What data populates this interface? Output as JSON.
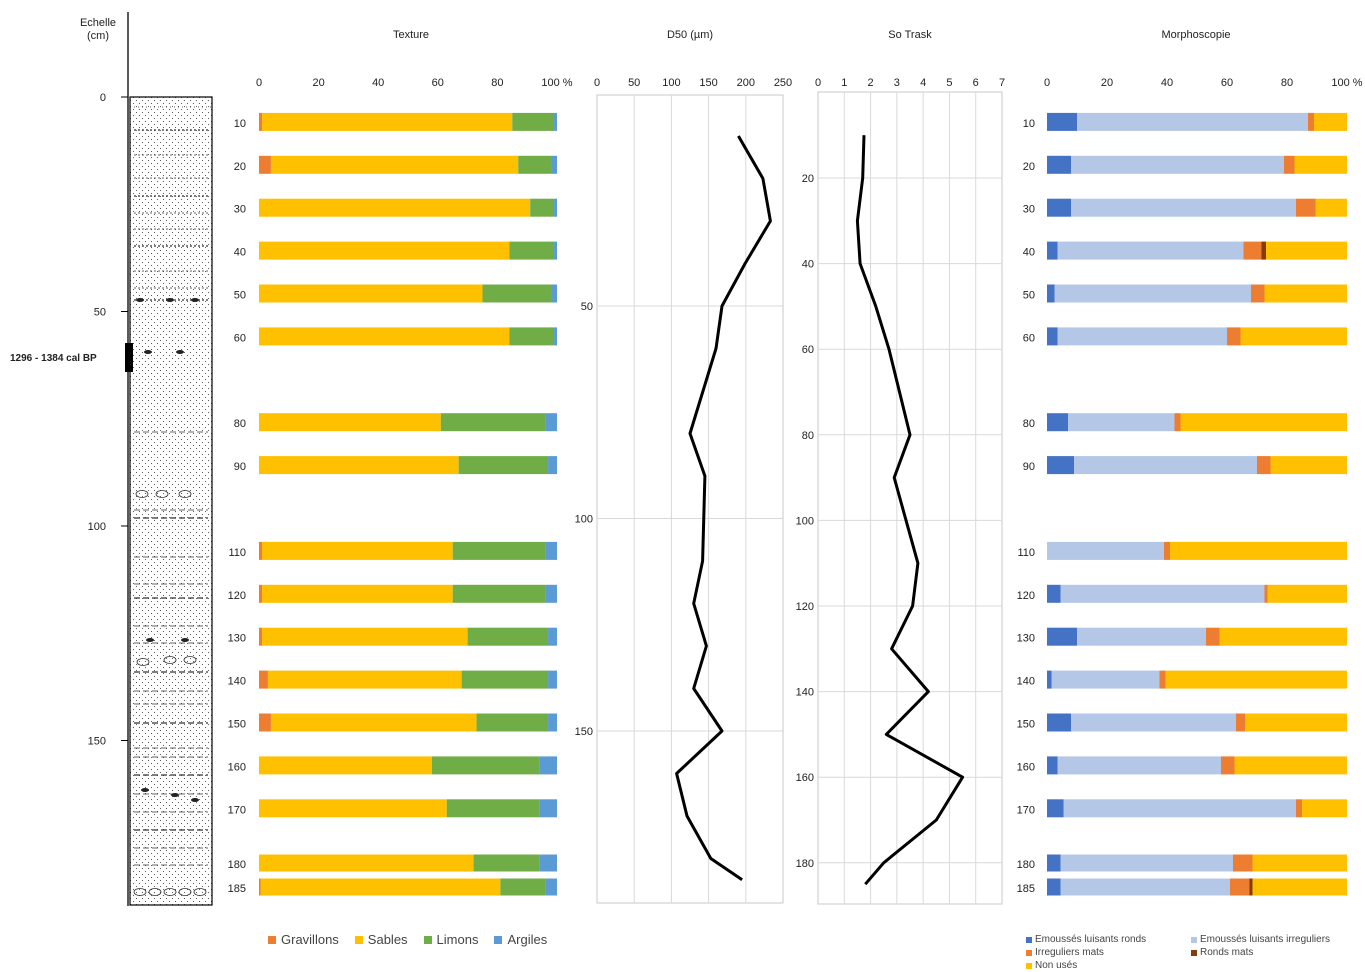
{
  "colors": {
    "gravillons": "#ED7D31",
    "sables": "#FFC000",
    "limons": "#70AD47",
    "argiles": "#5B9BD5",
    "emousses_ronds": "#4472C4",
    "emousses_irreg": "#B4C7E7",
    "irreguliers_mats": "#ED7D31",
    "ronds_mats": "#843C0C",
    "non_uses": "#FFC000"
  },
  "scale": {
    "title": "Echelle",
    "unit": "(cm)",
    "ticks": [
      "0",
      "50",
      "100",
      "150"
    ],
    "tick_values": [
      0,
      50,
      100,
      150
    ],
    "date_label": "1296 - 1384 cal BP",
    "date_depth": 60
  },
  "chart_data": [
    {
      "type": "bar",
      "title": "Texture",
      "orientation": "horizontal-stacked",
      "xlim": [
        0,
        100
      ],
      "x_ticks": [
        "0",
        "20",
        "40",
        "60",
        "80",
        "100 %"
      ],
      "categories": [
        "10",
        "20",
        "30",
        "40",
        "50",
        "60",
        "80",
        "90",
        "110",
        "120",
        "130",
        "140",
        "150",
        "160",
        "170",
        "180",
        "185"
      ],
      "depths": [
        10,
        20,
        30,
        40,
        50,
        60,
        80,
        90,
        110,
        120,
        130,
        140,
        150,
        160,
        170,
        180,
        185
      ],
      "series": [
        {
          "name": "Gravillons",
          "values": [
            1,
            4,
            0,
            0,
            0,
            0,
            0,
            0,
            1,
            1,
            1,
            3,
            4,
            0,
            0,
            0,
            0.5
          ]
        },
        {
          "name": "Sables",
          "values": [
            84,
            83,
            91,
            84,
            75,
            84,
            61,
            67,
            64,
            64,
            69,
            65,
            69,
            58,
            63,
            72,
            80.5
          ]
        },
        {
          "name": "Limons",
          "values": [
            14,
            11,
            8,
            15,
            23,
            15,
            35,
            30,
            31,
            31,
            27,
            29,
            24,
            36,
            31,
            22,
            15
          ]
        },
        {
          "name": "Argiles",
          "values": [
            1,
            2,
            1,
            1,
            2,
            1,
            4,
            3,
            4,
            4,
            3,
            3,
            3,
            6,
            6,
            6,
            4
          ]
        }
      ],
      "legend": [
        "Gravillons",
        "Sables",
        "Limons",
        "Argiles"
      ]
    },
    {
      "type": "line",
      "title": "D50 (µm)",
      "xlim": [
        0,
        250
      ],
      "x_ticks": [
        "0",
        "50",
        "100",
        "150",
        "200",
        "250"
      ],
      "y_ticks": [
        "50",
        "100",
        "150"
      ],
      "depth": [
        10,
        20,
        30,
        40,
        50,
        60,
        80,
        90,
        110,
        120,
        130,
        140,
        150,
        160,
        170,
        180,
        185
      ],
      "values": [
        190,
        223,
        233,
        199,
        168,
        160,
        125,
        145,
        142,
        130,
        147,
        130,
        168,
        107,
        121,
        153,
        195
      ]
    },
    {
      "type": "line",
      "title": "So Trask",
      "xlim": [
        0,
        7
      ],
      "x_ticks": [
        "0",
        "1",
        "2",
        "3",
        "4",
        "5",
        "6",
        "7"
      ],
      "y_ticks": [
        "20",
        "40",
        "60",
        "80",
        "100",
        "120",
        "140",
        "160",
        "180"
      ],
      "depth": [
        10,
        20,
        30,
        40,
        50,
        60,
        80,
        90,
        110,
        120,
        130,
        140,
        150,
        160,
        170,
        180,
        185
      ],
      "values": [
        1.75,
        1.7,
        1.5,
        1.6,
        2.2,
        2.7,
        3.5,
        2.9,
        3.8,
        3.6,
        2.8,
        4.2,
        2.6,
        5.5,
        4.5,
        2.5,
        1.8
      ]
    },
    {
      "type": "bar",
      "title": "Morphoscopie",
      "orientation": "horizontal-stacked",
      "xlim": [
        0,
        100
      ],
      "x_ticks": [
        "0",
        "20",
        "40",
        "60",
        "80",
        "100 %"
      ],
      "categories": [
        "10",
        "20",
        "30",
        "40",
        "50",
        "60",
        "80",
        "90",
        "110",
        "120",
        "130",
        "140",
        "150",
        "160",
        "170",
        "180",
        "185"
      ],
      "depths": [
        10,
        20,
        30,
        40,
        50,
        60,
        80,
        90,
        110,
        120,
        130,
        140,
        150,
        160,
        170,
        180,
        185
      ],
      "series": [
        {
          "name": "Emoussés luisants ronds",
          "values": [
            10,
            8,
            8,
            3.5,
            2.5,
            3.5,
            7,
            9,
            0,
            4.5,
            10,
            1.5,
            8,
            3.5,
            5.5,
            4.5,
            4.5
          ]
        },
        {
          "name": "Emoussés luisants irreguliers",
          "values": [
            77,
            71,
            75,
            62,
            65.5,
            56.5,
            35.5,
            61,
            39,
            68,
            43,
            36,
            55,
            54.5,
            77.5,
            57.5,
            56.5
          ]
        },
        {
          "name": "Irreguliers mats",
          "values": [
            2,
            3.5,
            6.5,
            6,
            4.5,
            4.5,
            2,
            4.5,
            2,
            1,
            4.5,
            2,
            3,
            4.5,
            2,
            6.5,
            6.5
          ]
        },
        {
          "name": "Ronds mats",
          "values": [
            0,
            0,
            0,
            1.5,
            0,
            0,
            0,
            0,
            0,
            0,
            0,
            0,
            0,
            0,
            0,
            0,
            1
          ]
        },
        {
          "name": "Non usés",
          "values": [
            11,
            17.5,
            10.5,
            27,
            27.5,
            35.5,
            55.5,
            25.5,
            59,
            26.5,
            42.5,
            60.5,
            34,
            37.5,
            15,
            31.5,
            31.5
          ]
        }
      ],
      "legend": [
        "Emoussés luisants ronds",
        "Emoussés luisants irreguliers",
        "Irreguliers mats",
        "Ronds mats",
        "Non usés"
      ]
    }
  ]
}
